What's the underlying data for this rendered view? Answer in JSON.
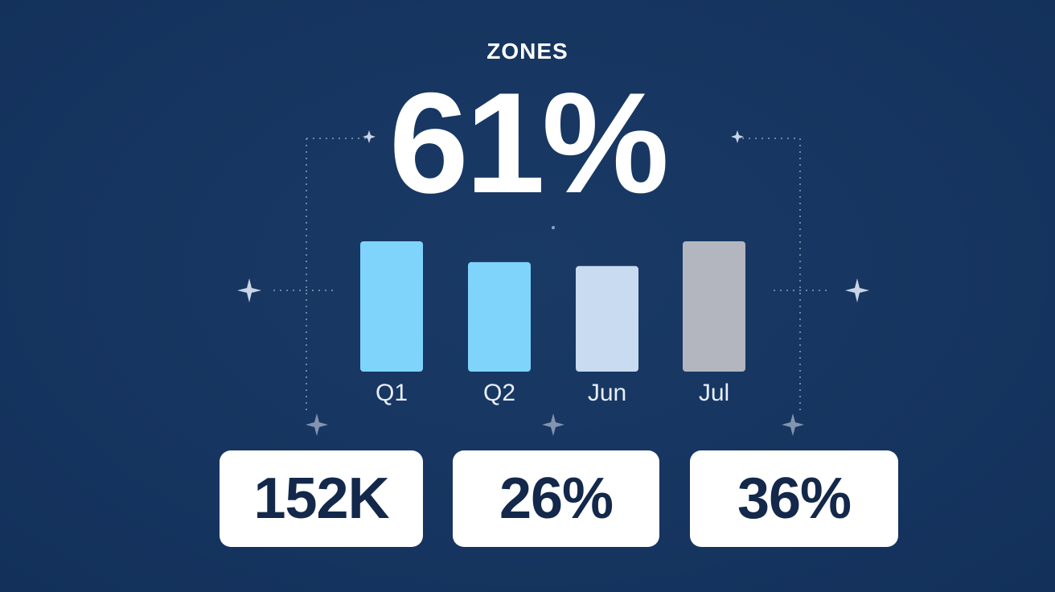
{
  "header": {
    "label": "ZONES",
    "headline": "61%"
  },
  "chart_data": {
    "type": "bar",
    "categories": [
      "Q1",
      "Q2",
      "Jun",
      "Jul"
    ],
    "values": [
      100,
      84,
      81,
      100
    ],
    "colors": [
      "#7fd4fb",
      "#7fd4fb",
      "#c9dbf0",
      "#b3b6bf"
    ]
  },
  "stats": [
    {
      "value": "152K"
    },
    {
      "value": "26%"
    },
    {
      "value": "36%"
    }
  ],
  "colors": {
    "background": "#163560",
    "text": "#ffffff",
    "card": "#ffffff",
    "card_text": "#13284a"
  }
}
